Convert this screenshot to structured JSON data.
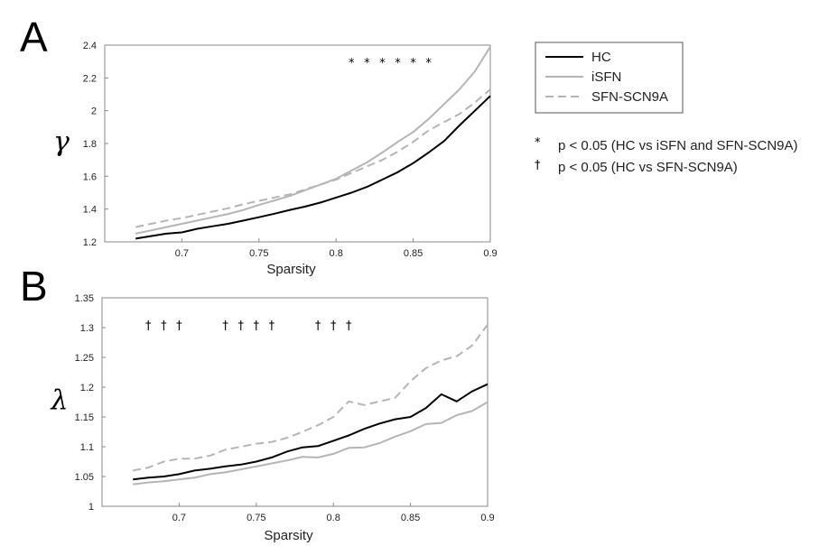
{
  "panel_labels": {
    "a": "A",
    "b": "B"
  },
  "legend": {
    "entries": [
      {
        "label": "HC",
        "color": "#000000",
        "dash": "solid"
      },
      {
        "label": "iSFN",
        "color": "#b5b5b5",
        "dash": "solid"
      },
      {
        "label": "SFN-SCN9A",
        "color": "#b5b5b5",
        "dash": "dashed"
      }
    ]
  },
  "notes": [
    {
      "symbol": "*",
      "text": "p < 0.05 (HC vs iSFN and SFN-SCN9A)"
    },
    {
      "symbol": "†",
      "text": "p < 0.05 (HC vs SFN-SCN9A)"
    }
  ],
  "chart_data": [
    {
      "type": "line",
      "panel": "A",
      "xlabel": "Sparsity",
      "ylabel": "γ",
      "xlim": [
        0.65,
        0.9
      ],
      "ylim": [
        1.2,
        2.4
      ],
      "xticks": [
        0.7,
        0.75,
        0.8,
        0.85,
        0.9
      ],
      "xtick_labels": [
        "0.7",
        "0.75",
        "0.8",
        "0.85",
        "0.9"
      ],
      "yticks": [
        1.2,
        1.4,
        1.6,
        1.8,
        2.0,
        2.2,
        2.4
      ],
      "ytick_labels": [
        "1.2",
        "1.4",
        "1.6",
        "1.8",
        "2",
        "2.2",
        "2.4"
      ],
      "x": [
        0.67,
        0.68,
        0.69,
        0.7,
        0.71,
        0.72,
        0.73,
        0.74,
        0.75,
        0.76,
        0.77,
        0.78,
        0.79,
        0.8,
        0.81,
        0.82,
        0.83,
        0.84,
        0.85,
        0.86,
        0.87,
        0.88,
        0.89,
        0.9
      ],
      "series": [
        {
          "name": "HC",
          "values": [
            1.22,
            1.235,
            1.25,
            1.258,
            1.28,
            1.295,
            1.31,
            1.33,
            1.35,
            1.372,
            1.395,
            1.415,
            1.44,
            1.47,
            1.5,
            1.535,
            1.58,
            1.625,
            1.68,
            1.745,
            1.815,
            1.91,
            2.0,
            2.09
          ]
        },
        {
          "name": "iSFN",
          "values": [
            1.25,
            1.27,
            1.29,
            1.31,
            1.33,
            1.35,
            1.37,
            1.395,
            1.425,
            1.452,
            1.48,
            1.515,
            1.55,
            1.585,
            1.635,
            1.685,
            1.745,
            1.81,
            1.87,
            1.95,
            2.04,
            2.13,
            2.24,
            2.39
          ]
        },
        {
          "name": "SFN-SCN9A",
          "values": [
            1.29,
            1.31,
            1.33,
            1.345,
            1.365,
            1.385,
            1.405,
            1.43,
            1.45,
            1.47,
            1.49,
            1.52,
            1.55,
            1.58,
            1.62,
            1.66,
            1.7,
            1.75,
            1.81,
            1.88,
            1.93,
            1.98,
            2.05,
            2.13
          ]
        }
      ],
      "annotations": [
        {
          "text": "*",
          "x": 0.81
        },
        {
          "text": "*",
          "x": 0.82
        },
        {
          "text": "*",
          "x": 0.83
        },
        {
          "text": "*",
          "x": 0.84
        },
        {
          "text": "*",
          "x": 0.85
        },
        {
          "text": "*",
          "x": 0.86
        }
      ]
    },
    {
      "type": "line",
      "panel": "B",
      "xlabel": "Sparsity",
      "ylabel": "λ",
      "xlim": [
        0.65,
        0.9
      ],
      "ylim": [
        1.0,
        1.35
      ],
      "xticks": [
        0.7,
        0.75,
        0.8,
        0.85,
        0.9
      ],
      "xtick_labels": [
        "0.7",
        "0.75",
        "0.8",
        "0.85",
        "0.9"
      ],
      "yticks": [
        1.0,
        1.05,
        1.1,
        1.15,
        1.2,
        1.25,
        1.3,
        1.35
      ],
      "ytick_labels": [
        "1",
        "1.05",
        "1.1",
        "1.15",
        "1.2",
        "1.25",
        "1.3",
        "1.35"
      ],
      "x": [
        0.67,
        0.68,
        0.69,
        0.7,
        0.71,
        0.72,
        0.73,
        0.74,
        0.75,
        0.76,
        0.77,
        0.78,
        0.79,
        0.8,
        0.81,
        0.82,
        0.83,
        0.84,
        0.85,
        0.86,
        0.87,
        0.88,
        0.89,
        0.9
      ],
      "series": [
        {
          "name": "HC",
          "values": [
            1.045,
            1.048,
            1.05,
            1.054,
            1.06,
            1.063,
            1.067,
            1.07,
            1.075,
            1.082,
            1.092,
            1.099,
            1.101,
            1.11,
            1.119,
            1.13,
            1.139,
            1.146,
            1.15,
            1.165,
            1.188,
            1.176,
            1.193,
            1.205
          ]
        },
        {
          "name": "iSFN",
          "values": [
            1.037,
            1.04,
            1.042,
            1.045,
            1.048,
            1.054,
            1.057,
            1.062,
            1.067,
            1.072,
            1.077,
            1.083,
            1.082,
            1.088,
            1.098,
            1.099,
            1.106,
            1.117,
            1.126,
            1.138,
            1.14,
            1.153,
            1.16,
            1.175
          ]
        },
        {
          "name": "SFN-SCN9A",
          "values": [
            1.06,
            1.065,
            1.075,
            1.08,
            1.08,
            1.085,
            1.095,
            1.1,
            1.105,
            1.108,
            1.115,
            1.125,
            1.136,
            1.15,
            1.176,
            1.17,
            1.176,
            1.182,
            1.21,
            1.232,
            1.245,
            1.252,
            1.27,
            1.305
          ]
        }
      ],
      "annotations": [
        {
          "text": "†",
          "x": 0.68
        },
        {
          "text": "†",
          "x": 0.69
        },
        {
          "text": "†",
          "x": 0.7
        },
        {
          "text": "†",
          "x": 0.73
        },
        {
          "text": "†",
          "x": 0.74
        },
        {
          "text": "†",
          "x": 0.75
        },
        {
          "text": "†",
          "x": 0.76
        },
        {
          "text": "†",
          "x": 0.79
        },
        {
          "text": "†",
          "x": 0.8
        },
        {
          "text": "†",
          "x": 0.81
        }
      ]
    }
  ]
}
